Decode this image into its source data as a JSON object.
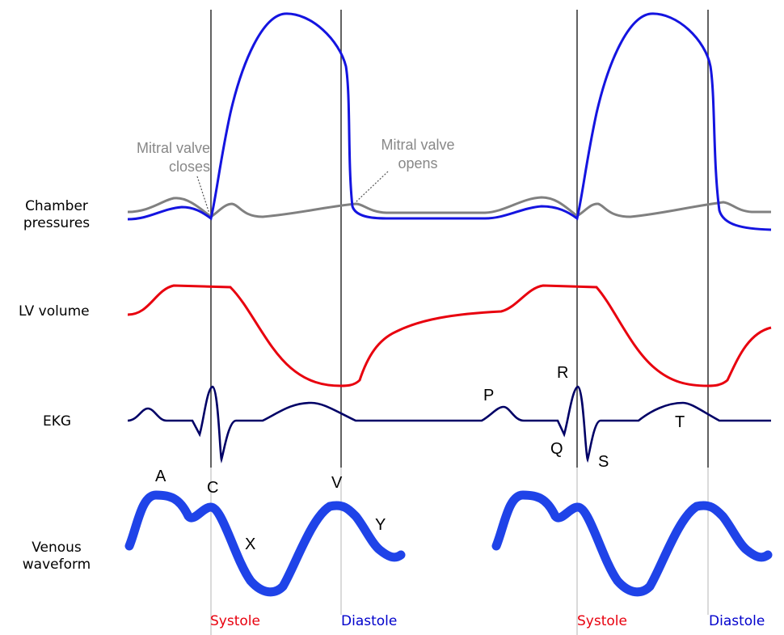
{
  "row_labels": {
    "chamber_line1": "Chamber",
    "chamber_line2": "pressures",
    "lv_volume": "LV volume",
    "ekg": "EKG",
    "venous_line1": "Venous",
    "venous_line2": "waveform"
  },
  "annotations": {
    "mitral_closes_line1": "Mitral valve",
    "mitral_closes_line2": "closes",
    "mitral_opens_line1": "Mitral valve",
    "mitral_opens_line2": "opens"
  },
  "ekg_labels": {
    "P": "P",
    "Q": "Q",
    "R": "R",
    "S": "S",
    "T": "T"
  },
  "venous_labels": {
    "A": "A",
    "C": "C",
    "X": "X",
    "V": "V",
    "Y": "Y"
  },
  "phases": [
    {
      "text": "Systole",
      "color": "#e8000e"
    },
    {
      "text": "Diastole",
      "color": "#0000cc"
    },
    {
      "text": "Systole",
      "color": "#e8000e"
    },
    {
      "text": "Diastole",
      "color": "#0000cc"
    }
  ],
  "colors": {
    "ventricular_pressure": "#1414e0",
    "atrial_pressure": "#808080",
    "lv_volume": "#e8000e",
    "ekg": "#000066",
    "venous": "#1f43e8",
    "guide_lines": "#3a3a3a"
  }
}
